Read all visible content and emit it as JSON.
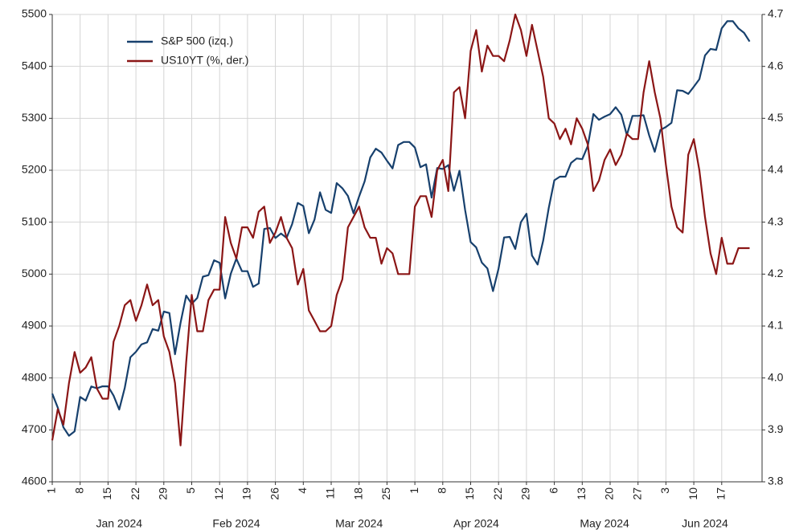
{
  "chart_data": {
    "type": "line",
    "x": [
      "2024-01-01",
      "2024-01-02",
      "2024-01-03",
      "2024-01-04",
      "2024-01-05",
      "2024-01-08",
      "2024-01-09",
      "2024-01-10",
      "2024-01-11",
      "2024-01-12",
      "2024-01-15",
      "2024-01-16",
      "2024-01-17",
      "2024-01-18",
      "2024-01-19",
      "2024-01-22",
      "2024-01-23",
      "2024-01-24",
      "2024-01-25",
      "2024-01-26",
      "2024-01-29",
      "2024-01-30",
      "2024-01-31",
      "2024-02-01",
      "2024-02-02",
      "2024-02-05",
      "2024-02-06",
      "2024-02-07",
      "2024-02-08",
      "2024-02-09",
      "2024-02-12",
      "2024-02-13",
      "2024-02-14",
      "2024-02-15",
      "2024-02-16",
      "2024-02-19",
      "2024-02-20",
      "2024-02-21",
      "2024-02-22",
      "2024-02-23",
      "2024-02-26",
      "2024-02-27",
      "2024-02-28",
      "2024-02-29",
      "2024-03-01",
      "2024-03-04",
      "2024-03-05",
      "2024-03-06",
      "2024-03-07",
      "2024-03-08",
      "2024-03-11",
      "2024-03-12",
      "2024-03-13",
      "2024-03-14",
      "2024-03-15",
      "2024-03-18",
      "2024-03-19",
      "2024-03-20",
      "2024-03-21",
      "2024-03-22",
      "2024-03-25",
      "2024-03-26",
      "2024-03-27",
      "2024-03-28",
      "2024-03-29",
      "2024-04-01",
      "2024-04-02",
      "2024-04-03",
      "2024-04-04",
      "2024-04-05",
      "2024-04-08",
      "2024-04-09",
      "2024-04-10",
      "2024-04-11",
      "2024-04-12",
      "2024-04-15",
      "2024-04-16",
      "2024-04-17",
      "2024-04-18",
      "2024-04-19",
      "2024-04-22",
      "2024-04-23",
      "2024-04-24",
      "2024-04-25",
      "2024-04-26",
      "2024-04-29",
      "2024-04-30",
      "2024-05-01",
      "2024-05-02",
      "2024-05-03",
      "2024-05-06",
      "2024-05-07",
      "2024-05-08",
      "2024-05-09",
      "2024-05-10",
      "2024-05-13",
      "2024-05-14",
      "2024-05-15",
      "2024-05-16",
      "2024-05-17",
      "2024-05-20",
      "2024-05-21",
      "2024-05-22",
      "2024-05-23",
      "2024-05-24",
      "2024-05-27",
      "2024-05-28",
      "2024-05-29",
      "2024-05-30",
      "2024-05-31",
      "2024-06-03",
      "2024-06-04",
      "2024-06-05",
      "2024-06-06",
      "2024-06-07",
      "2024-06-10",
      "2024-06-11",
      "2024-06-12",
      "2024-06-13",
      "2024-06-14",
      "2024-06-17",
      "2024-06-18",
      "2024-06-19",
      "2024-06-20",
      "2024-06-21",
      "2024-06-24"
    ],
    "series": [
      {
        "name": "S&P 500 (izq.)",
        "color": "#17406d",
        "axis": "y",
        "values": [
          4769.8,
          4742.8,
          4704.8,
          4688.7,
          4697.2,
          4763.5,
          4756.5,
          4783.5,
          4780.2,
          4783.8,
          4783.8,
          4766.0,
          4739.2,
          4780.9,
          4839.8,
          4850.4,
          4864.6,
          4868.6,
          4894.2,
          4891.0,
          4927.9,
          4925.0,
          4845.7,
          4906.2,
          4958.6,
          4942.8,
          4954.2,
          4995.1,
          4997.9,
          5026.6,
          5021.8,
          4953.2,
          5000.6,
          5029.7,
          5005.6,
          5005.6,
          4975.5,
          4981.8,
          5087.0,
          5088.8,
          5069.5,
          5078.2,
          5069.8,
          5096.3,
          5137.1,
          5131.0,
          5078.7,
          5104.8,
          5157.4,
          5123.7,
          5117.9,
          5175.3,
          5165.3,
          5150.5,
          5117.1,
          5149.4,
          5178.5,
          5224.6,
          5241.5,
          5234.2,
          5218.2,
          5203.6,
          5248.5,
          5254.4,
          5254.4,
          5243.8,
          5205.8,
          5211.5,
          5147.2,
          5204.3,
          5202.4,
          5209.9,
          5160.6,
          5199.1,
          5123.4,
          5061.8,
          5051.4,
          5022.2,
          5011.1,
          4967.2,
          5010.6,
          5070.6,
          5071.6,
          5048.4,
          5100.0,
          5116.2,
          5035.7,
          5018.4,
          5064.2,
          5127.8,
          5180.7,
          5187.7,
          5187.7,
          5214.1,
          5222.7,
          5221.4,
          5246.7,
          5308.2,
          5297.1,
          5303.3,
          5308.1,
          5321.4,
          5307.0,
          5267.8,
          5304.7,
          5304.7,
          5306.0,
          5267.0,
          5235.5,
          5277.5,
          5283.4,
          5291.3,
          5354.0,
          5353.0,
          5347.0,
          5360.8,
          5375.3,
          5421.0,
          5433.7,
          5431.6,
          5473.2,
          5487.0,
          5487.0,
          5473.2,
          5464.6,
          5447.9
        ]
      },
      {
        "name": "US10YT (%, der.)",
        "color": "#8b1616",
        "axis": "y2",
        "values": [
          3.88,
          3.94,
          3.91,
          3.99,
          4.05,
          4.01,
          4.02,
          4.04,
          3.98,
          3.96,
          3.96,
          4.07,
          4.1,
          4.14,
          4.15,
          4.11,
          4.14,
          4.18,
          4.14,
          4.15,
          4.08,
          4.05,
          3.99,
          3.87,
          4.03,
          4.16,
          4.09,
          4.09,
          4.15,
          4.17,
          4.17,
          4.31,
          4.26,
          4.23,
          4.29,
          4.29,
          4.27,
          4.32,
          4.33,
          4.26,
          4.28,
          4.31,
          4.27,
          4.25,
          4.18,
          4.21,
          4.13,
          4.11,
          4.09,
          4.09,
          4.1,
          4.16,
          4.19,
          4.29,
          4.31,
          4.33,
          4.29,
          4.27,
          4.27,
          4.22,
          4.25,
          4.24,
          4.2,
          4.2,
          4.2,
          4.33,
          4.35,
          4.35,
          4.31,
          4.4,
          4.42,
          4.36,
          4.55,
          4.56,
          4.5,
          4.63,
          4.67,
          4.59,
          4.64,
          4.62,
          4.62,
          4.61,
          4.65,
          4.7,
          4.67,
          4.62,
          4.68,
          4.63,
          4.58,
          4.5,
          4.49,
          4.46,
          4.48,
          4.45,
          4.5,
          4.48,
          4.45,
          4.36,
          4.38,
          4.42,
          4.44,
          4.41,
          4.43,
          4.47,
          4.46,
          4.46,
          4.55,
          4.61,
          4.55,
          4.5,
          4.41,
          4.33,
          4.29,
          4.28,
          4.43,
          4.46,
          4.4,
          4.31,
          4.24,
          4.2,
          4.27,
          4.22,
          4.22,
          4.25,
          4.25,
          4.25
        ]
      }
    ],
    "ylim": [
      4600,
      5500
    ],
    "yticks": [
      4600,
      4700,
      4800,
      4900,
      5000,
      5100,
      5200,
      5300,
      5400,
      5500
    ],
    "y2lim": [
      3.8,
      4.7
    ],
    "y2ticks": [
      3.8,
      3.9,
      {
        "value": 4,
        "label": "4.0"
      },
      4.1,
      4.2,
      4.3,
      4.4,
      4.5,
      4.6,
      4.7
    ],
    "xticks": [
      {
        "value": "2024-01-01",
        "label": "1"
      },
      {
        "value": "2024-01-08",
        "label": "8"
      },
      {
        "value": "2024-01-15",
        "label": "15"
      },
      {
        "value": "2024-01-22",
        "label": "22"
      },
      {
        "value": "2024-01-29",
        "label": "29"
      },
      {
        "value": "2024-02-05",
        "label": "5"
      },
      {
        "value": "2024-02-12",
        "label": "12"
      },
      {
        "value": "2024-02-19",
        "label": "19"
      },
      {
        "value": "2024-02-26",
        "label": "26"
      },
      {
        "value": "2024-03-04",
        "label": "4"
      },
      {
        "value": "2024-03-11",
        "label": "11"
      },
      {
        "value": "2024-03-18",
        "label": "18"
      },
      {
        "value": "2024-03-25",
        "label": "25"
      },
      {
        "value": "2024-04-01",
        "label": "1"
      },
      {
        "value": "2024-04-08",
        "label": "8"
      },
      {
        "value": "2024-04-15",
        "label": "15"
      },
      {
        "value": "2024-04-22",
        "label": "22"
      },
      {
        "value": "2024-04-29",
        "label": "29"
      },
      {
        "value": "2024-05-06",
        "label": "6"
      },
      {
        "value": "2024-05-13",
        "label": "13"
      },
      {
        "value": "2024-05-20",
        "label": "20"
      },
      {
        "value": "2024-05-27",
        "label": "27"
      },
      {
        "value": "2024-06-03",
        "label": "3"
      },
      {
        "value": "2024-06-10",
        "label": "10"
      },
      {
        "value": "2024-06-17",
        "label": "17"
      }
    ],
    "month_labels": [
      {
        "value": "2024-01-17",
        "label": "Jan 2024"
      },
      {
        "value": "2024-02-15",
        "label": "Feb 2024"
      },
      {
        "value": "2024-03-18",
        "label": "Mar 2024"
      },
      {
        "value": "2024-04-16",
        "label": "Apr 2024"
      },
      {
        "value": "2024-05-17",
        "label": "May 2024"
      },
      {
        "value": "2024-06-12",
        "label": "Jun 2024"
      }
    ],
    "grid": true,
    "legend": "upper left"
  }
}
